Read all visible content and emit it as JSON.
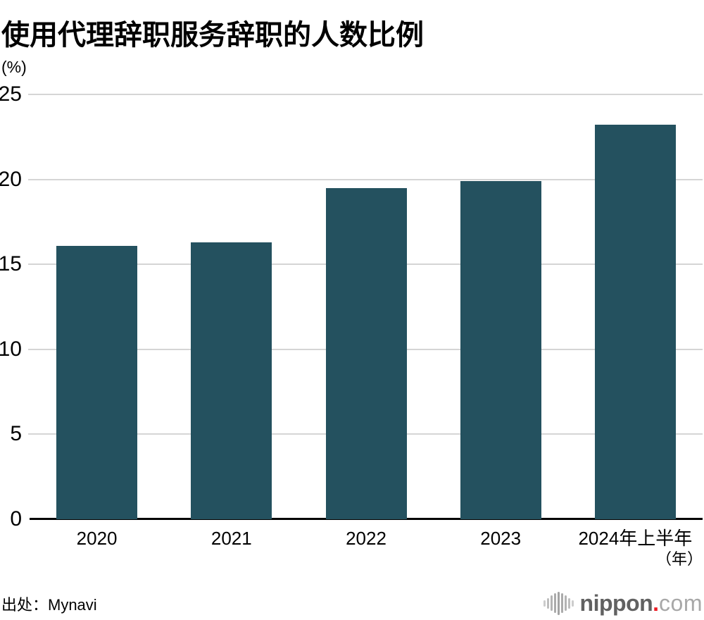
{
  "header": {
    "title": "使用代理辞职服务辞职的人数比例"
  },
  "axes": {
    "y_unit": "(%)",
    "x_unit": "（年）"
  },
  "chart_data": {
    "type": "bar",
    "title": "使用代理辞职服务辞职的人数比例",
    "categories": [
      "2020",
      "2021",
      "2022",
      "2023",
      "2024年上半年"
    ],
    "values": [
      16.1,
      16.3,
      19.5,
      19.9,
      23.2
    ],
    "xlabel": "（年）",
    "ylabel": "(%)",
    "ylim": [
      0,
      25
    ],
    "yticks": [
      0,
      5,
      10,
      15,
      20,
      25
    ],
    "grid": true,
    "legend": false,
    "bar_color": "#24515F",
    "gridline_color": "#d5d5d5",
    "baseline_color": "#000000",
    "source": "出处：Mynavi"
  },
  "footer": {
    "source": "出处：Mynavi",
    "logo": {
      "icon": "waveform-icon",
      "bold_text": "nippon",
      "dot": ".",
      "light_text": "com",
      "dot_color": "#ed1c24"
    }
  }
}
